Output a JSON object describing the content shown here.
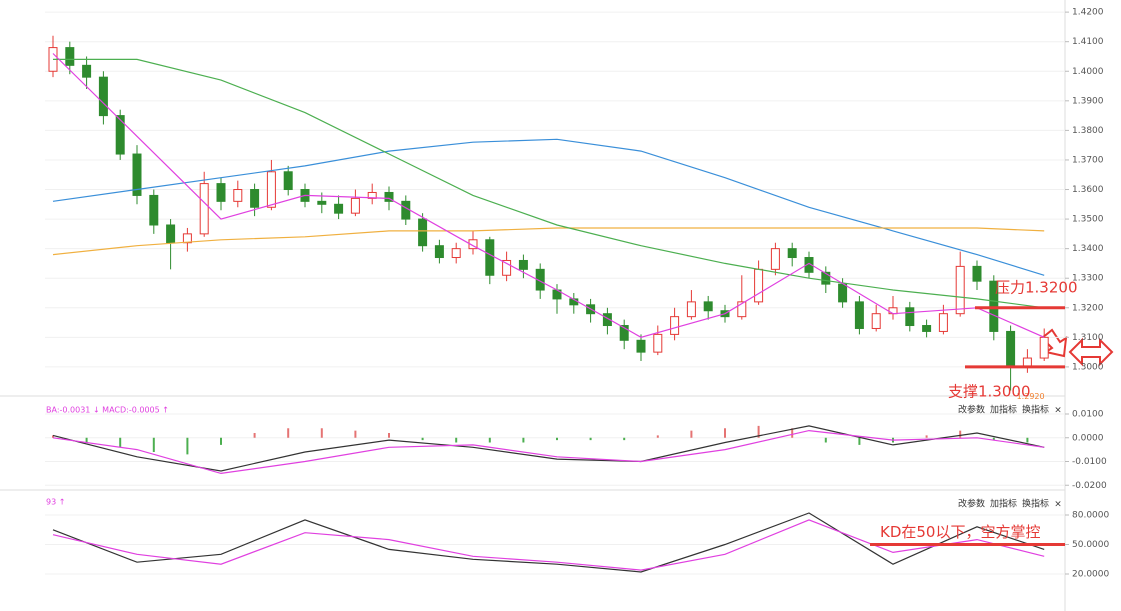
{
  "panel_buttons": [
    "改参数",
    "加指标",
    "换指标",
    "×"
  ],
  "chart_data": [
    {
      "type": "candlestick",
      "up_color": "#e53935",
      "down_color": "#2e8b2e",
      "open": [
        1.4,
        1.408,
        1.402,
        1.398,
        1.385,
        1.372,
        1.358,
        1.348,
        1.342,
        1.345,
        1.362,
        1.356,
        1.36,
        1.354,
        1.366,
        1.36,
        1.356,
        1.355,
        1.352,
        1.357,
        1.359,
        1.356,
        1.35,
        1.341,
        1.337,
        1.34,
        1.343,
        1.331,
        1.336,
        1.333,
        1.326,
        1.323,
        1.321,
        1.318,
        1.314,
        1.309,
        1.305,
        1.311,
        1.317,
        1.322,
        1.319,
        1.317,
        1.322,
        1.333,
        1.34,
        1.337,
        1.332,
        1.328,
        1.322,
        1.313,
        1.318,
        1.32,
        1.314,
        1.312,
        1.318,
        1.334,
        1.329,
        1.312,
        1.3,
        1.303
      ],
      "high": [
        1.412,
        1.41,
        1.405,
        1.4,
        1.387,
        1.375,
        1.36,
        1.35,
        1.347,
        1.366,
        1.364,
        1.363,
        1.362,
        1.37,
        1.368,
        1.362,
        1.359,
        1.358,
        1.36,
        1.362,
        1.361,
        1.358,
        1.352,
        1.343,
        1.342,
        1.346,
        1.344,
        1.339,
        1.338,
        1.335,
        1.328,
        1.325,
        1.323,
        1.32,
        1.316,
        1.311,
        1.314,
        1.32,
        1.326,
        1.324,
        1.321,
        1.331,
        1.336,
        1.342,
        1.342,
        1.339,
        1.334,
        1.33,
        1.324,
        1.321,
        1.324,
        1.322,
        1.316,
        1.321,
        1.339,
        1.336,
        1.331,
        1.314,
        1.306,
        1.313
      ],
      "low": [
        1.398,
        1.399,
        1.394,
        1.382,
        1.37,
        1.355,
        1.345,
        1.333,
        1.339,
        1.344,
        1.353,
        1.354,
        1.351,
        1.353,
        1.358,
        1.354,
        1.352,
        1.35,
        1.351,
        1.355,
        1.353,
        1.348,
        1.339,
        1.335,
        1.335,
        1.338,
        1.328,
        1.329,
        1.33,
        1.323,
        1.318,
        1.318,
        1.315,
        1.311,
        1.306,
        1.302,
        1.304,
        1.309,
        1.316,
        1.316,
        1.315,
        1.316,
        1.321,
        1.331,
        1.334,
        1.33,
        1.325,
        1.32,
        1.311,
        1.312,
        1.316,
        1.312,
        1.31,
        1.311,
        1.317,
        1.326,
        1.309,
        1.292,
        1.298,
        1.302
      ],
      "close": [
        1.408,
        1.402,
        1.398,
        1.385,
        1.372,
        1.358,
        1.348,
        1.342,
        1.345,
        1.362,
        1.356,
        1.36,
        1.354,
        1.366,
        1.36,
        1.356,
        1.355,
        1.352,
        1.357,
        1.359,
        1.356,
        1.35,
        1.341,
        1.337,
        1.34,
        1.343,
        1.331,
        1.336,
        1.333,
        1.326,
        1.323,
        1.321,
        1.318,
        1.314,
        1.309,
        1.305,
        1.311,
        1.317,
        1.322,
        1.319,
        1.317,
        1.322,
        1.333,
        1.34,
        1.337,
        1.332,
        1.328,
        1.322,
        1.313,
        1.318,
        1.32,
        1.314,
        1.312,
        1.318,
        1.334,
        1.329,
        1.312,
        1.3,
        1.303,
        1.31
      ],
      "series": [
        {
          "color": "#3a8fd9",
          "x": [
            0,
            5,
            10,
            15,
            20,
            25,
            30,
            35,
            40,
            45,
            50,
            55,
            59
          ],
          "values": [
            1.356,
            1.36,
            1.364,
            1.368,
            1.373,
            1.376,
            1.377,
            1.373,
            1.364,
            1.354,
            1.346,
            1.338,
            1.331
          ]
        },
        {
          "color": "#f0b040",
          "x": [
            0,
            5,
            10,
            15,
            20,
            25,
            30,
            35,
            40,
            45,
            50,
            55,
            59
          ],
          "values": [
            1.338,
            1.341,
            1.343,
            1.344,
            1.346,
            1.346,
            1.347,
            1.347,
            1.347,
            1.347,
            1.347,
            1.347,
            1.346
          ]
        },
        {
          "color": "#4caf50",
          "x": [
            0,
            5,
            10,
            15,
            20,
            25,
            30,
            35,
            40,
            45,
            50,
            55,
            59
          ],
          "values": [
            1.404,
            1.404,
            1.397,
            1.386,
            1.372,
            1.358,
            1.348,
            1.341,
            1.335,
            1.33,
            1.326,
            1.323,
            1.32
          ]
        },
        {
          "color": "#e040e0",
          "x": [
            0,
            5,
            10,
            15,
            20,
            25,
            30,
            35,
            40,
            45,
            50,
            55,
            59
          ],
          "values": [
            1.406,
            1.378,
            1.35,
            1.358,
            1.357,
            1.341,
            1.326,
            1.31,
            1.318,
            1.335,
            1.318,
            1.32,
            1.31
          ]
        }
      ],
      "ylim": [
        1.2905,
        1.4241
      ],
      "yticks": [
        {
          "value": 1.42,
          "label": "1.4200"
        },
        {
          "value": 1.41,
          "label": "1.4100"
        },
        {
          "value": 1.4,
          "label": "1.4000"
        },
        {
          "value": 1.39,
          "label": "1.3900"
        },
        {
          "value": 1.38,
          "label": "1.3800"
        },
        {
          "value": 1.37,
          "label": "1.3700"
        },
        {
          "value": 1.36,
          "label": "1.3600"
        },
        {
          "value": 1.35,
          "label": "1.3500"
        },
        {
          "value": 1.34,
          "label": "1.3400"
        },
        {
          "value": 1.33,
          "label": "1.3300"
        },
        {
          "value": 1.32,
          "label": "1.3200"
        },
        {
          "value": 1.31,
          "label": "1.3100"
        },
        {
          "value": 1.3,
          "label": "1.3000"
        }
      ],
      "low_label": {
        "value": 1.292,
        "label": "1.2920"
      },
      "annotations": [
        {
          "text": "压力1.3200",
          "value": 1.32,
          "color": "#e53935"
        },
        {
          "text": "支撑1.3000",
          "value": 1.3,
          "color": "#e53935"
        }
      ]
    },
    {
      "type": "macd",
      "header": "BA:-0.0031 ↓ MACD:-0.0005 ↑",
      "bars": {
        "x": [
          0,
          2,
          4,
          6,
          8,
          10,
          12,
          14,
          16,
          18,
          20,
          22,
          24,
          26,
          28,
          30,
          32,
          34,
          36,
          38,
          40,
          42,
          44,
          46,
          48,
          50,
          52,
          54,
          56,
          58
        ],
        "values": [
          0.001,
          -0.002,
          -0.004,
          -0.006,
          -0.007,
          -0.003,
          0.002,
          0.004,
          0.004,
          0.003,
          0.002,
          -0.001,
          -0.002,
          -0.002,
          -0.002,
          -0.001,
          -0.001,
          -0.001,
          0.001,
          0.003,
          0.004,
          0.005,
          0.004,
          -0.002,
          -0.003,
          -0.002,
          0.001,
          0.003,
          -0.001,
          -0.002
        ],
        "up_color": "#e57373",
        "down_color": "#4caf50"
      },
      "series": [
        {
          "color": "#333333",
          "x": [
            0,
            5,
            10,
            15,
            20,
            25,
            30,
            35,
            40,
            45,
            50,
            55,
            59
          ],
          "values": [
            0.001,
            -0.008,
            -0.014,
            -0.006,
            -0.001,
            -0.004,
            -0.009,
            -0.01,
            -0.002,
            0.005,
            -0.003,
            0.002,
            -0.004
          ]
        },
        {
          "color": "#e040e0",
          "x": [
            0,
            5,
            10,
            15,
            20,
            25,
            30,
            35,
            40,
            45,
            50,
            55,
            59
          ],
          "values": [
            0.0,
            -0.005,
            -0.015,
            -0.01,
            -0.004,
            -0.003,
            -0.008,
            -0.01,
            -0.005,
            0.003,
            -0.001,
            0.0,
            -0.004
          ]
        }
      ],
      "ylim": [
        -0.022,
        0.0159
      ],
      "yticks": [
        {
          "value": 0.01,
          "label": "0.0100"
        },
        {
          "value": 0,
          "label": "0.0000"
        },
        {
          "value": -0.01,
          "label": "-0.0100"
        },
        {
          "value": -0.02,
          "label": "-0.0200"
        }
      ]
    },
    {
      "type": "line",
      "header": "93 ↑",
      "series": [
        {
          "color": "#333333",
          "x": [
            0,
            5,
            10,
            15,
            20,
            25,
            30,
            35,
            40,
            45,
            50,
            55,
            59
          ],
          "values": [
            65,
            32,
            40,
            75,
            45,
            35,
            30,
            22,
            50,
            82,
            30,
            68,
            45
          ]
        },
        {
          "color": "#e040e0",
          "x": [
            0,
            5,
            10,
            15,
            20,
            25,
            30,
            35,
            40,
            45,
            50,
            55,
            59
          ],
          "values": [
            60,
            40,
            30,
            62,
            55,
            38,
            32,
            24,
            40,
            75,
            42,
            55,
            38
          ]
        }
      ],
      "ylim": [
        1.7,
        103.4
      ],
      "yticks": [
        {
          "value": 80,
          "label": "80.0000"
        },
        {
          "value": 50,
          "label": "50.0000"
        },
        {
          "value": 20,
          "label": "20.0000"
        }
      ],
      "annotations": [
        {
          "text": "KD在50以下，空方掌控",
          "value": 50,
          "color": "#e53935"
        }
      ]
    }
  ]
}
